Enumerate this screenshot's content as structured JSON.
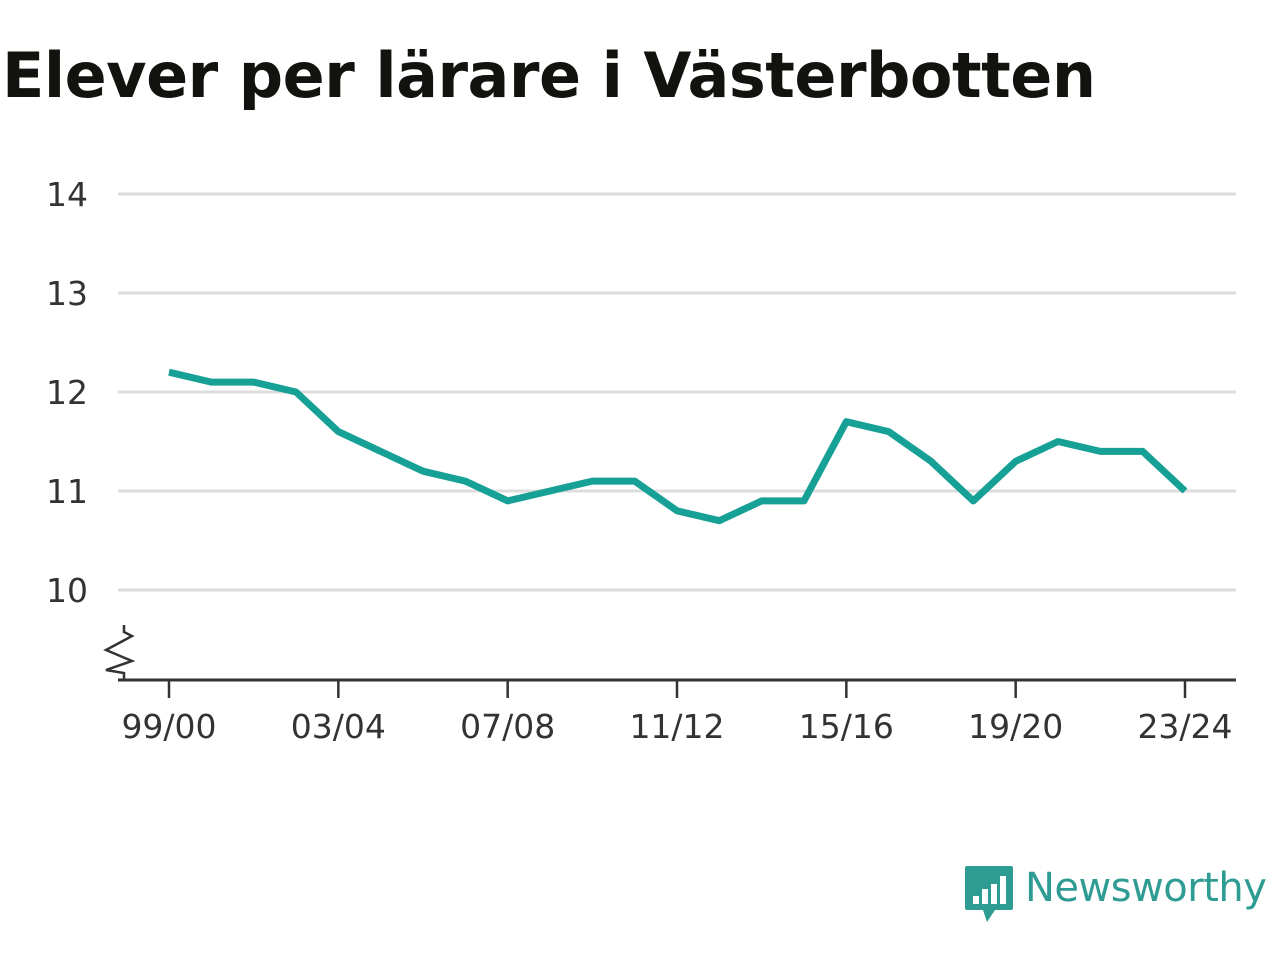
{
  "chart_data": {
    "type": "line",
    "title": "Elever per lärare i Västerbotten",
    "xlabel": "",
    "ylabel": "",
    "categories": [
      "99/00",
      "00/01",
      "01/02",
      "02/03",
      "03/04",
      "04/05",
      "05/06",
      "06/07",
      "07/08",
      "08/09",
      "09/10",
      "10/11",
      "11/12",
      "12/13",
      "13/14",
      "14/15",
      "15/16",
      "16/17",
      "17/18",
      "18/19",
      "19/20",
      "20/21",
      "21/22",
      "22/23",
      "23/24"
    ],
    "x_tick_labels": [
      "99/00",
      "03/04",
      "07/08",
      "11/12",
      "15/16",
      "19/20",
      "23/24"
    ],
    "y_tick_labels": [
      "10",
      "11",
      "12",
      "13",
      "14"
    ],
    "series": [
      {
        "values": [
          12.2,
          12.1,
          12.1,
          12.0,
          11.6,
          11.4,
          11.2,
          11.1,
          10.9,
          11.0,
          11.1,
          11.1,
          10.8,
          10.7,
          10.9,
          10.9,
          11.7,
          11.6,
          11.3,
          10.9,
          11.3,
          11.5,
          11.4,
          11.4,
          11.0
        ]
      }
    ],
    "ylim": [
      9.1,
      14
    ],
    "y_axis_break": true,
    "grid": "horizontal",
    "legend": "none",
    "line_color": "#16a096",
    "grid_color": "#dddddd",
    "axis_color": "#333333"
  },
  "brand": {
    "name": "Newsworthy",
    "color": "#2f9c93",
    "logo_icon": "bar-chart-speech-bubble-icon"
  }
}
